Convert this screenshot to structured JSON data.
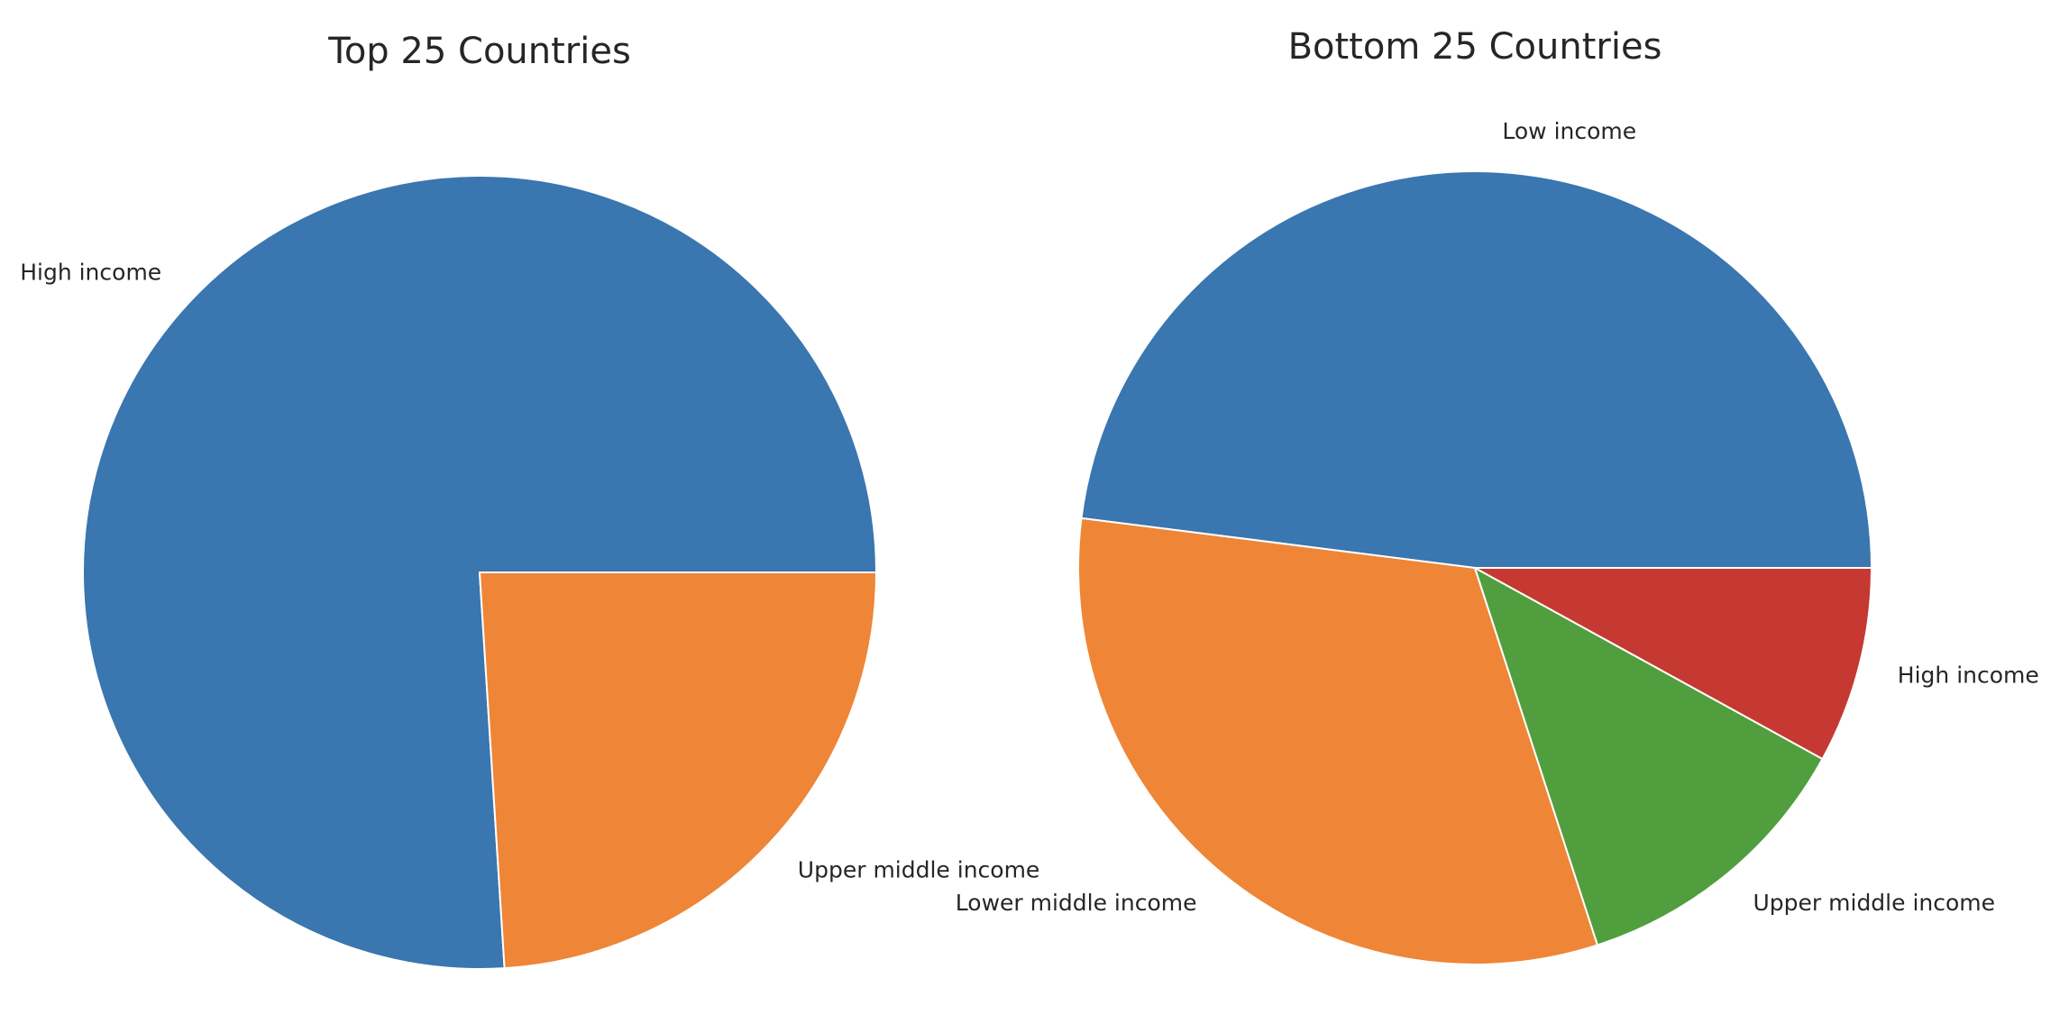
{
  "chart_data": [
    {
      "type": "pie",
      "title": "Top 25 Countries",
      "start_angle_deg": 0,
      "direction": "counterclockwise",
      "slices": [
        {
          "label": "High income",
          "value": 19,
          "color": "#3a76af"
        },
        {
          "label": "Upper middle income",
          "value": 6,
          "color": "#ef8536"
        }
      ]
    },
    {
      "type": "pie",
      "title": "Bottom 25 Countries",
      "start_angle_deg": 0,
      "direction": "counterclockwise",
      "slices": [
        {
          "label": "Low income",
          "value": 12,
          "color": "#3a76af"
        },
        {
          "label": "Lower middle income",
          "value": 8,
          "color": "#ef8536"
        },
        {
          "label": "Upper middle income",
          "value": 3,
          "color": "#519e3e"
        },
        {
          "label": "High income",
          "value": 2,
          "color": "#c53932"
        }
      ]
    }
  ]
}
